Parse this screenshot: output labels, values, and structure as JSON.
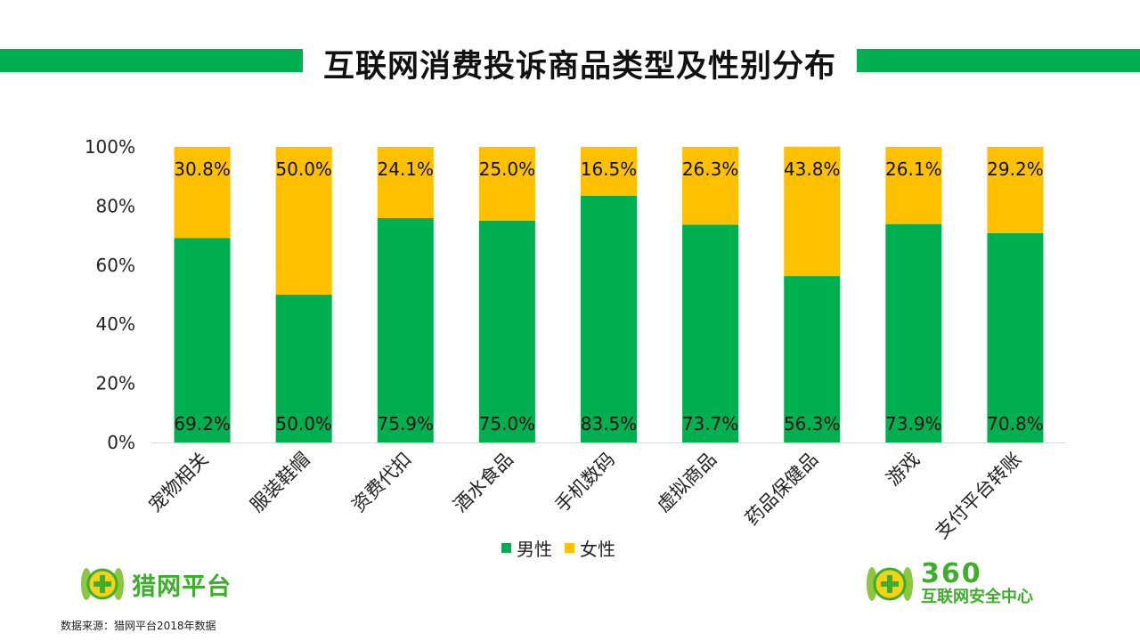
{
  "header": {
    "title": "互联网消费投诉商品类型及性别分布"
  },
  "chart_data": {
    "type": "bar",
    "stacked": true,
    "categories": [
      "宠物相关",
      "服装鞋帽",
      "资费代扣",
      "酒水食品",
      "手机数码",
      "虚拟商品",
      "药品保健品",
      "游戏",
      "支付平台转账"
    ],
    "series": [
      {
        "name": "男性",
        "color": "#00B050",
        "values": [
          69.2,
          50.0,
          75.9,
          75.0,
          83.5,
          73.7,
          56.3,
          73.9,
          70.8
        ]
      },
      {
        "name": "女性",
        "color": "#FFC000",
        "values": [
          30.8,
          50.0,
          24.1,
          25.0,
          16.5,
          26.3,
          43.8,
          26.1,
          29.2
        ]
      }
    ],
    "data_labels": {
      "男性": [
        "69.2%",
        "50.0%",
        "75.9%",
        "75.0%",
        "83.5%",
        "73.7%",
        "56.3%",
        "73.9%",
        "70.8%"
      ],
      "女性": [
        "30.8%",
        "50.0%",
        "24.1%",
        "25.0%",
        "16.5%",
        "26.3%",
        "43.8%",
        "26.1%",
        "29.2%"
      ]
    },
    "y_ticks": [
      "0%",
      "20%",
      "40%",
      "60%",
      "80%",
      "100%"
    ],
    "ylim": [
      0,
      100
    ],
    "grid": false,
    "legend_position": "bottom"
  },
  "legend": {
    "male": "男性",
    "female": "女性",
    "male_color": "#00B050",
    "female_color": "#FFC000"
  },
  "footer": {
    "source": "数据来源：猎网平台2018年数据",
    "left_logo": "猎网平台",
    "right_logo_number": "360",
    "right_logo_org": "互联网安全中心"
  }
}
